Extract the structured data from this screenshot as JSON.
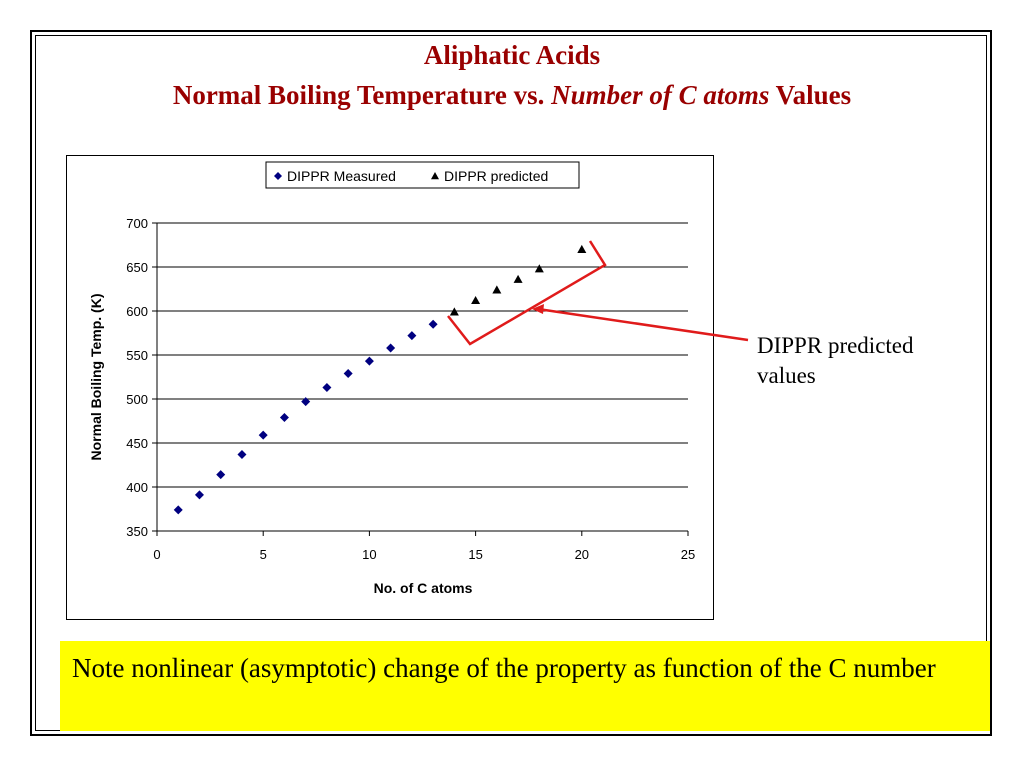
{
  "slide": {
    "title_line1": "Aliphatic Acids",
    "title_line2_a": "Normal Boiling Temperature vs. ",
    "title_line2_b": "Number of C atoms",
    "title_line2_c": " Values",
    "callout_label": "DIPPR predicted values",
    "note": "Note nonlinear (asymptotic) change of the property as function of the C number"
  },
  "colors": {
    "title": "#990000",
    "measured_marker": "#000080",
    "predicted_marker": "#000000",
    "callout": "#e01b1b",
    "note_bg": "#ffff00"
  },
  "chart_data": {
    "type": "scatter",
    "title": "",
    "xlabel": "No. of C atoms",
    "ylabel": "Normal Boiling Temp. (K)",
    "xlim": [
      0,
      25
    ],
    "ylim": [
      350,
      700
    ],
    "xticks": [
      0,
      5,
      10,
      15,
      20,
      25
    ],
    "yticks": [
      350,
      400,
      450,
      500,
      550,
      600,
      650,
      700
    ],
    "grid": "horizontal",
    "legend": "top",
    "series": [
      {
        "name": "DIPPR Measured",
        "marker": "diamond",
        "x": [
          1,
          2,
          3,
          4,
          5,
          6,
          7,
          8,
          9,
          10,
          11,
          12,
          13
        ],
        "y": [
          374,
          391,
          414,
          437,
          459,
          479,
          497,
          513,
          529,
          543,
          558,
          572,
          585
        ]
      },
      {
        "name": "DIPPR predicted",
        "marker": "triangle",
        "x": [
          14,
          15,
          16,
          17,
          18,
          20
        ],
        "y": [
          599,
          612,
          624,
          636,
          648,
          670
        ]
      }
    ]
  }
}
